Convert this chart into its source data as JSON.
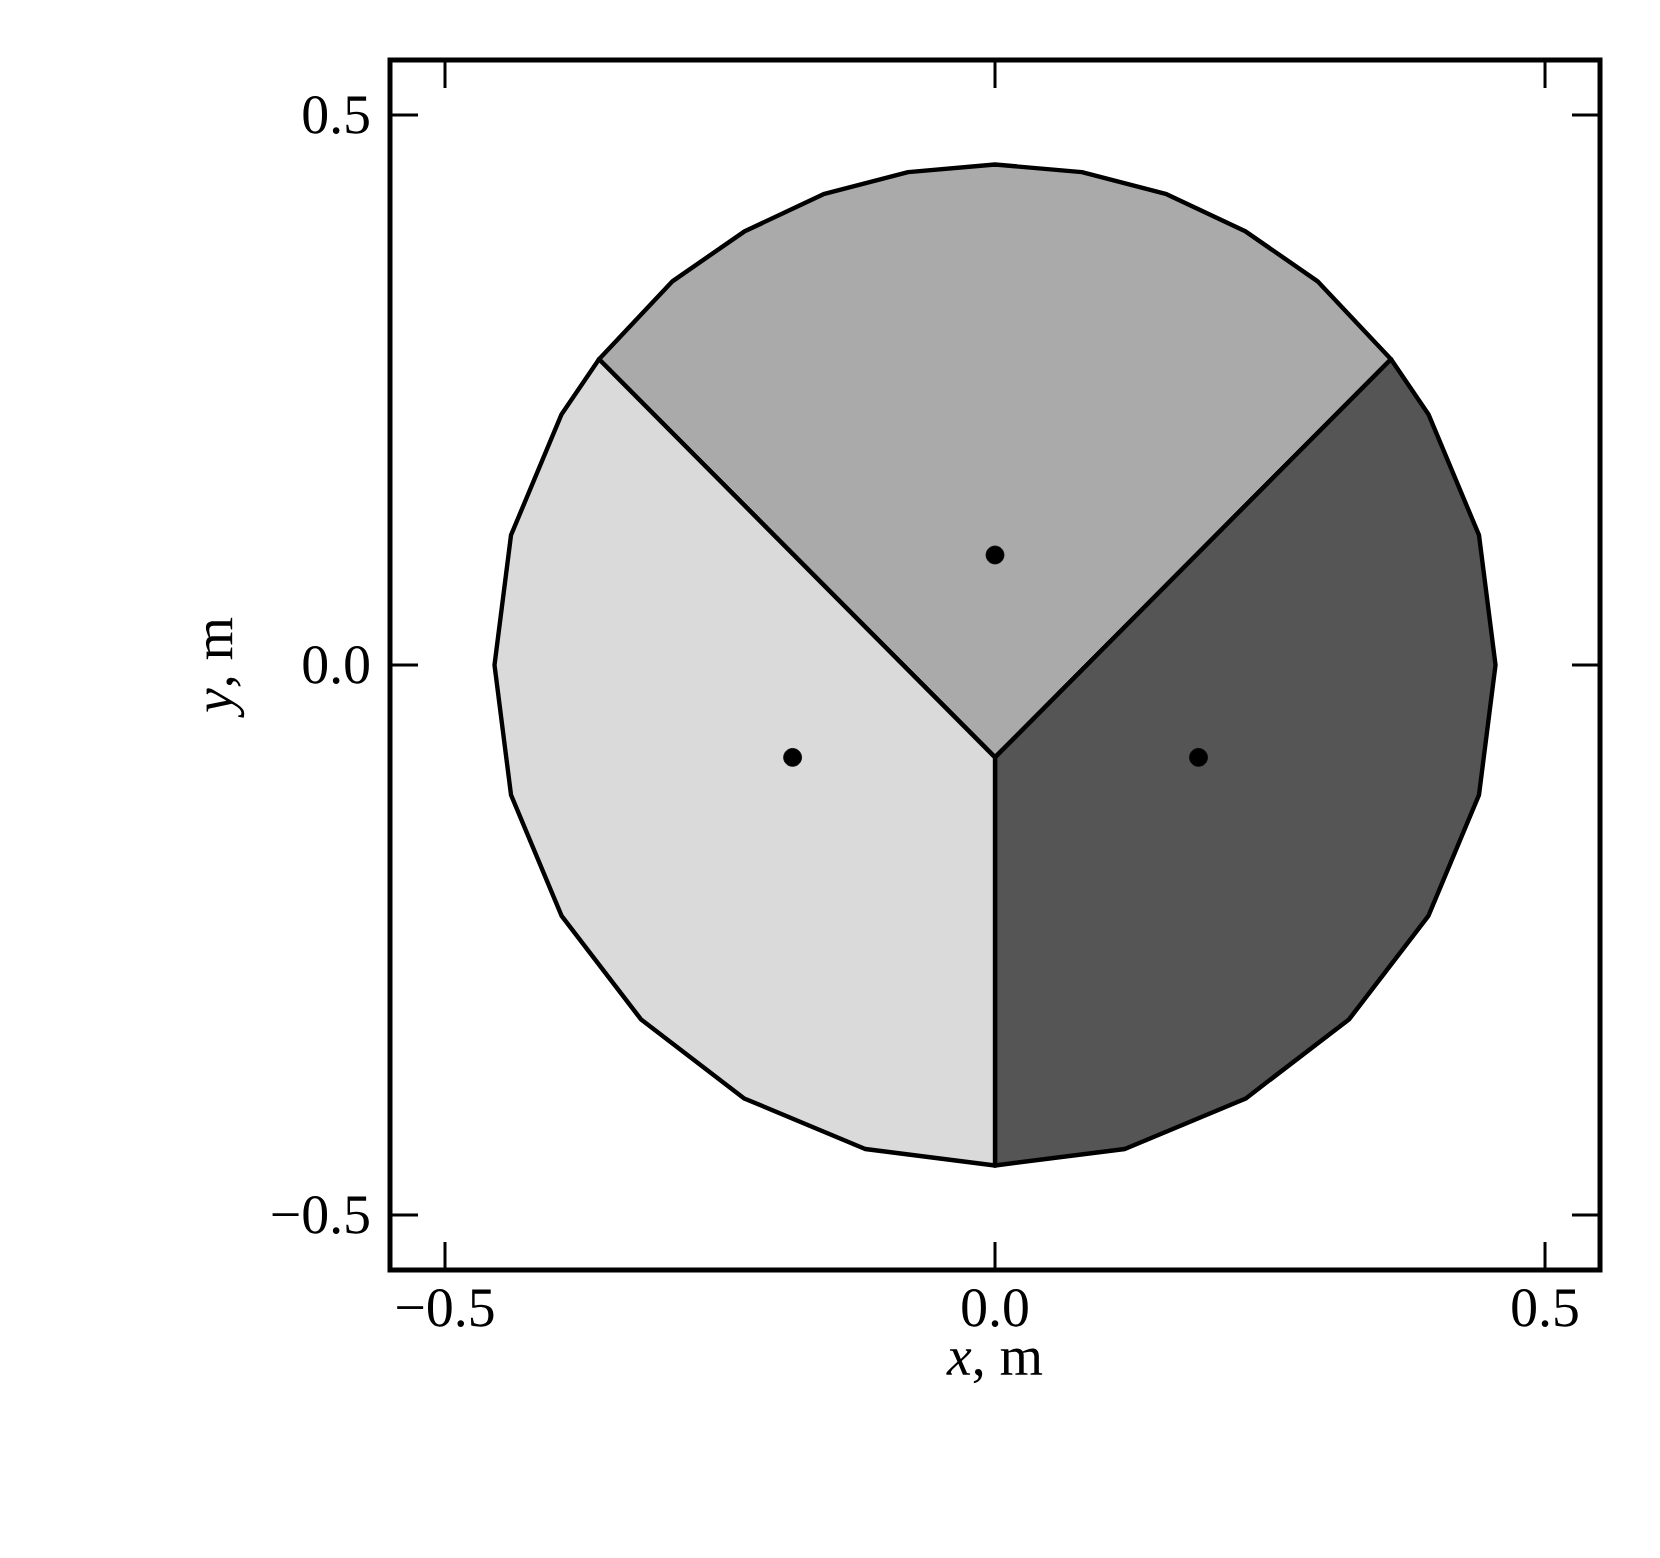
{
  "chart_data": {
    "type": "scatter",
    "xlabel": "*x*, m",
    "ylabel": "*y*, m",
    "xlim": [
      -0.55,
      0.55
    ],
    "ylim": [
      -0.55,
      0.55
    ],
    "xticks": [
      {
        "value": -0.5,
        "label": "−0.5"
      },
      {
        "value": 0,
        "label": "0.0"
      },
      {
        "value": 0.5,
        "label": "0.5"
      }
    ],
    "yticks": [
      {
        "value": -0.5,
        "label": "−0.5"
      },
      {
        "value": 0,
        "label": "0.0"
      },
      {
        "value": 0.5,
        "label": "0.5"
      }
    ],
    "grid": false,
    "marker": "circle",
    "series": [
      {
        "type": "area",
        "marker": "none",
        "color": "#aaaaaa",
        "x": [
          0,
          0.36,
          0.293,
          0.228,
          0.156,
          0.079,
          0,
          -0.079,
          -0.156,
          -0.228,
          -0.293,
          -0.36
        ],
        "values": [
          -0.084,
          0.278,
          0.349,
          0.394,
          0.428,
          0.448,
          0.455,
          0.448,
          0.428,
          0.394,
          0.349,
          0.278
        ]
      },
      {
        "type": "area",
        "marker": "none",
        "color": "#555555",
        "x": [
          0,
          0,
          0.118,
          0.228,
          0.322,
          0.394,
          0.44,
          0.455,
          0.44,
          0.394,
          0.36
        ],
        "values": [
          -0.084,
          -0.455,
          -0.44,
          -0.394,
          -0.322,
          -0.228,
          -0.118,
          0,
          0.118,
          0.228,
          0.278
        ]
      },
      {
        "type": "area",
        "marker": "none",
        "color": "#dadada",
        "x": [
          0,
          -0.36,
          -0.394,
          -0.44,
          -0.455,
          -0.44,
          -0.394,
          -0.322,
          -0.228,
          -0.118,
          0
        ],
        "values": [
          -0.084,
          0.278,
          0.228,
          0.118,
          0,
          -0.118,
          -0.228,
          -0.322,
          -0.394,
          -0.44,
          -0.455
        ]
      },
      {
        "color": "#000000",
        "x": [
          -0.184,
          0,
          0.185
        ],
        "values": [
          -0.084,
          0.1,
          -0.084
        ]
      }
    ]
  }
}
